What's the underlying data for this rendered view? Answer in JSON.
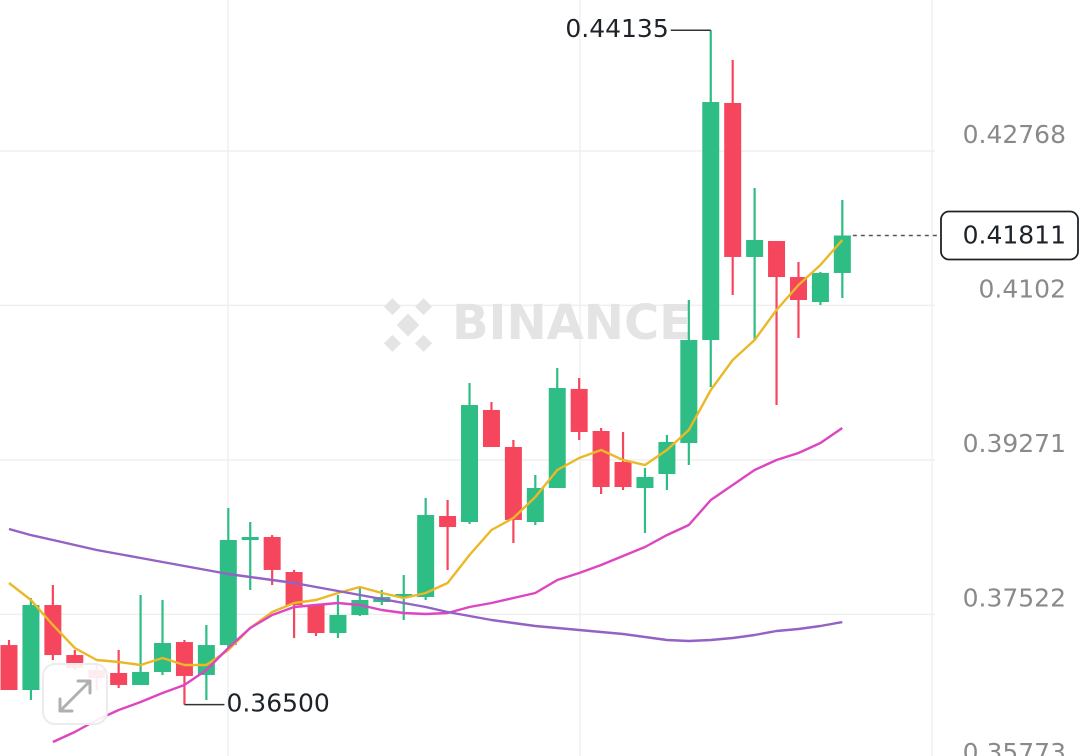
{
  "chart_data": {
    "type": "candlestick",
    "watermark": "BINANCE",
    "up_color": "#2ebd85",
    "down_color": "#f6465d",
    "grid": true,
    "ylim": [
      0.35919,
      0.44477
    ],
    "yticks": [
      0.42768,
      0.4102,
      0.39271,
      0.37522,
      0.35773
    ],
    "open": [
      0.37175,
      0.36666,
      0.37628,
      0.37062,
      0.36893,
      0.36859,
      0.36723,
      0.3687,
      0.37209,
      0.36836,
      0.37175,
      0.38364,
      0.38398,
      0.38002,
      0.37628,
      0.37311,
      0.37515,
      0.37662,
      0.37719,
      0.37719,
      0.38636,
      0.38568,
      0.39836,
      0.39417,
      0.38568,
      0.38953,
      0.40074,
      0.39598,
      0.39247,
      0.38953,
      0.39111,
      0.39462,
      0.40628,
      0.43311,
      0.41568,
      0.41749,
      0.41341,
      0.41058,
      0.41387
    ],
    "high": [
      0.37232,
      0.37708,
      0.37855,
      0.37119,
      0.36949,
      0.37119,
      0.37742,
      0.37685,
      0.37232,
      0.37402,
      0.38726,
      0.38568,
      0.3842,
      0.38025,
      0.37628,
      0.37742,
      0.37821,
      0.37798,
      0.37968,
      0.3884,
      0.38817,
      0.40141,
      0.39926,
      0.39496,
      0.391,
      0.40311,
      0.40198,
      0.39632,
      0.39587,
      0.39179,
      0.39553,
      0.41081,
      0.44135,
      0.43798,
      0.42349,
      0.41749,
      0.41511,
      0.41398,
      0.42213
    ],
    "low": [
      0.36666,
      0.36553,
      0.37006,
      0.36893,
      0.36666,
      0.36689,
      0.36723,
      0.36836,
      0.365,
      0.36553,
      0.37119,
      0.37798,
      0.37855,
      0.37255,
      0.37277,
      0.37255,
      0.37504,
      0.37628,
      0.37459,
      0.37685,
      0.38025,
      0.38545,
      0.39417,
      0.3833,
      0.38534,
      0.38953,
      0.39496,
      0.38885,
      0.3893,
      0.38443,
      0.3893,
      0.39213,
      0.40096,
      0.41138,
      0.40628,
      0.39892,
      0.40651,
      0.41024,
      0.41104
    ],
    "close": [
      0.36666,
      0.37628,
      0.37062,
      0.36915,
      0.36802,
      0.36723,
      0.3687,
      0.37198,
      0.36825,
      0.37175,
      0.38364,
      0.38398,
      0.38025,
      0.37628,
      0.37311,
      0.37515,
      0.37685,
      0.37719,
      0.37753,
      0.38647,
      0.38511,
      0.39892,
      0.39417,
      0.38591,
      0.38953,
      0.40085,
      0.39587,
      0.38964,
      0.38964,
      0.39077,
      0.39474,
      0.40628,
      0.43322,
      0.41568,
      0.4176,
      0.41341,
      0.41081,
      0.41387,
      0.41811
    ],
    "ma": [
      {
        "color": "#ebb828",
        "values": [
          0.37877,
          0.37685,
          0.37402,
          0.37142,
          0.37006,
          0.36983,
          0.36949,
          0.37028,
          0.36949,
          0.36949,
          0.37119,
          0.37368,
          0.37549,
          0.37651,
          0.37685,
          0.37764,
          0.37832,
          0.37764,
          0.37708,
          0.37764,
          0.37877,
          0.38194,
          0.38477,
          0.38613,
          0.38851,
          0.39157,
          0.39292,
          0.39383,
          0.3927,
          0.39213,
          0.39383,
          0.39609,
          0.40062,
          0.40402,
          0.40628,
          0.40968,
          0.41251,
          0.41477,
          0.4176
        ]
      },
      {
        "color": "#de45c0",
        "values": [
          null,
          null,
          0.36078,
          0.36191,
          0.36327,
          0.3644,
          0.3653,
          0.36632,
          0.36723,
          0.36893,
          0.37142,
          0.37368,
          0.37515,
          0.37606,
          0.37628,
          0.37651,
          0.37628,
          0.37572,
          0.37538,
          0.37527,
          0.37538,
          0.37606,
          0.37651,
          0.37708,
          0.37764,
          0.37911,
          0.37991,
          0.38081,
          0.38183,
          0.38285,
          0.3842,
          0.38534,
          0.38817,
          0.38987,
          0.39157,
          0.3927,
          0.39349,
          0.39462,
          0.39632
        ]
      },
      {
        "color": "#9462c4",
        "values": [
          0.38489,
          0.3842,
          0.38364,
          0.38308,
          0.38251,
          0.38206,
          0.3816,
          0.38115,
          0.3807,
          0.38025,
          0.37979,
          0.37945,
          0.37911,
          0.37877,
          0.37832,
          0.37787,
          0.37742,
          0.37696,
          0.37651,
          0.37606,
          0.37549,
          0.37504,
          0.37459,
          0.37425,
          0.37391,
          0.37368,
          0.37345,
          0.37323,
          0.373,
          0.37266,
          0.37232,
          0.37221,
          0.37232,
          0.37255,
          0.37289,
          0.37334,
          0.37357,
          0.37391,
          0.37435
        ]
      }
    ],
    "annotations": [
      {
        "value": 0.44135,
        "label": "0.44135",
        "side": "left"
      },
      {
        "value": 0.365,
        "label": "0.36500",
        "side": "right"
      }
    ],
    "last_price": 0.41811
  }
}
